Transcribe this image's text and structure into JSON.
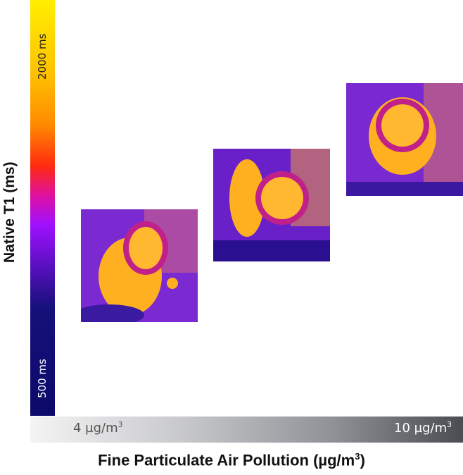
{
  "colorbar": {
    "top_label": "2000 ms",
    "bottom_label": "500 ms",
    "colors": [
      "#ffee00",
      "#ff8a00",
      "#ff2a10",
      "#a010ff",
      "#0c0a6a"
    ]
  },
  "y_axis": {
    "label": "Native T1 (ms)"
  },
  "x_axis": {
    "left_tick": "4 µg/m",
    "right_tick": "10 µg/m",
    "tick_sup": "3",
    "label": "Fine Particulate Air Pollution (µg/m",
    "label_sup": "3",
    "label_end": ")"
  },
  "images": [
    {
      "name": "cardiac-t1-map-low"
    },
    {
      "name": "cardiac-t1-map-mid"
    },
    {
      "name": "cardiac-t1-map-high"
    }
  ]
}
